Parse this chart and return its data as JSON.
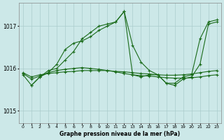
{
  "title": "Graphe pression niveau de la mer (hPa)",
  "bg_color": "#cce8e8",
  "grid_color": "#aacccc",
  "line_color": "#1a6b1a",
  "x_ticks": [
    0,
    1,
    2,
    3,
    4,
    5,
    6,
    7,
    8,
    9,
    10,
    11,
    12,
    13,
    14,
    15,
    16,
    17,
    18,
    19,
    20,
    21,
    22,
    23
  ],
  "y_ticks": [
    1015,
    1016,
    1017
  ],
  "ylim": [
    1014.7,
    1017.55
  ],
  "xlim": [
    -0.5,
    23.5
  ],
  "series": [
    {
      "x": [
        0,
        1,
        2,
        3,
        4,
        5,
        6,
        7,
        8,
        9,
        10,
        11,
        12,
        13,
        14,
        15,
        16,
        17,
        18,
        19,
        20,
        21,
        22,
        23
      ],
      "y": [
        1015.85,
        1015.6,
        1015.8,
        1015.95,
        1016.0,
        1016.2,
        1016.4,
        1016.7,
        1016.85,
        1017.0,
        1017.05,
        1017.1,
        1017.35,
        1016.55,
        1016.15,
        1015.95,
        1015.85,
        1015.65,
        1015.6,
        1015.75,
        1015.8,
        1016.1,
        1017.05,
        1017.1
      ]
    },
    {
      "x": [
        1,
        2,
        3,
        4,
        5,
        6,
        7,
        8,
        9,
        10,
        11,
        12,
        13,
        14,
        15,
        16,
        17,
        18,
        19,
        20,
        21,
        22,
        23
      ],
      "y": [
        1015.6,
        1015.8,
        1015.9,
        1016.1,
        1016.45,
        1016.6,
        1016.65,
        1016.75,
        1016.9,
        1017.0,
        1017.1,
        1017.35,
        1015.85,
        1015.8,
        1015.85,
        1015.85,
        1015.65,
        1015.65,
        1015.8,
        1015.85,
        1016.7,
        1017.1,
        1017.15
      ]
    },
    {
      "x": [
        0,
        1,
        2,
        3,
        4,
        5,
        6,
        7,
        8,
        9,
        10,
        11,
        12,
        13,
        14,
        15,
        16,
        17,
        18,
        19,
        20,
        21,
        22,
        23
      ],
      "y": [
        1015.88,
        1015.75,
        1015.82,
        1015.9,
        1015.95,
        1015.98,
        1016.0,
        1016.02,
        1016.0,
        1015.98,
        1015.95,
        1015.92,
        1015.88,
        1015.85,
        1015.83,
        1015.82,
        1015.8,
        1015.78,
        1015.77,
        1015.77,
        1015.78,
        1015.8,
        1015.83,
        1015.85
      ]
    },
    {
      "x": [
        0,
        1,
        2,
        3,
        4,
        5,
        6,
        7,
        8,
        9,
        10,
        11,
        12,
        13,
        14,
        15,
        16,
        17,
        18,
        19,
        20,
        21,
        22,
        23
      ],
      "y": [
        1015.9,
        1015.8,
        1015.85,
        1015.88,
        1015.9,
        1015.92,
        1015.93,
        1015.95,
        1015.95,
        1015.95,
        1015.95,
        1015.93,
        1015.92,
        1015.9,
        1015.88,
        1015.87,
        1015.85,
        1015.84,
        1015.84,
        1015.85,
        1015.87,
        1015.9,
        1015.93,
        1015.95
      ]
    }
  ]
}
